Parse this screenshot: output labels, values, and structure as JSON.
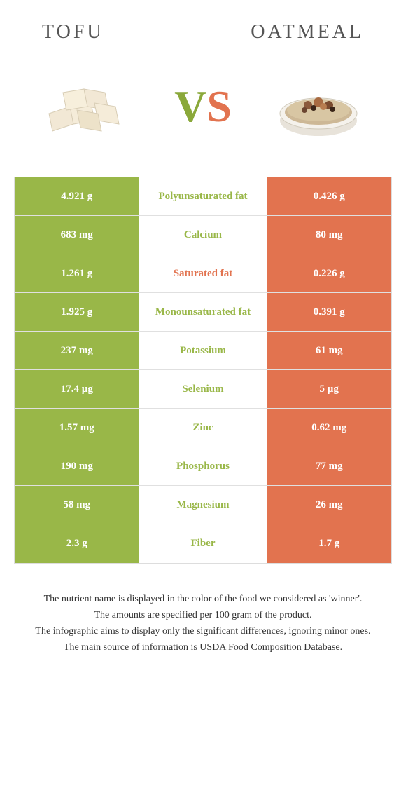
{
  "header": {
    "left": "TOFU",
    "right": "OATMEAL"
  },
  "vs": {
    "v": "V",
    "s": "S"
  },
  "colors": {
    "left": "#99b748",
    "right": "#e2734f",
    "mid_left_text": "#99b748",
    "mid_right_text": "#e2734f"
  },
  "rows": [
    {
      "left": "4.921 g",
      "mid": "Polyunsaturated fat",
      "right": "0.426 g",
      "winner": "left"
    },
    {
      "left": "683 mg",
      "mid": "Calcium",
      "right": "80 mg",
      "winner": "left"
    },
    {
      "left": "1.261 g",
      "mid": "Saturated fat",
      "right": "0.226 g",
      "winner": "right"
    },
    {
      "left": "1.925 g",
      "mid": "Monounsaturated fat",
      "right": "0.391 g",
      "winner": "left"
    },
    {
      "left": "237 mg",
      "mid": "Potassium",
      "right": "61 mg",
      "winner": "left"
    },
    {
      "left": "17.4 µg",
      "mid": "Selenium",
      "right": "5 µg",
      "winner": "left"
    },
    {
      "left": "1.57 mg",
      "mid": "Zinc",
      "right": "0.62 mg",
      "winner": "left"
    },
    {
      "left": "190 mg",
      "mid": "Phosphorus",
      "right": "77 mg",
      "winner": "left"
    },
    {
      "left": "58 mg",
      "mid": "Magnesium",
      "right": "26 mg",
      "winner": "left"
    },
    {
      "left": "2.3 g",
      "mid": "Fiber",
      "right": "1.7 g",
      "winner": "left"
    }
  ],
  "footer": [
    "The nutrient name is displayed in the color of the food we considered as 'winner'.",
    "The amounts are specified per 100 gram of the product.",
    "The infographic aims to display only the significant differences, ignoring minor ones.",
    "The main source of information is USDA Food Composition Database."
  ]
}
